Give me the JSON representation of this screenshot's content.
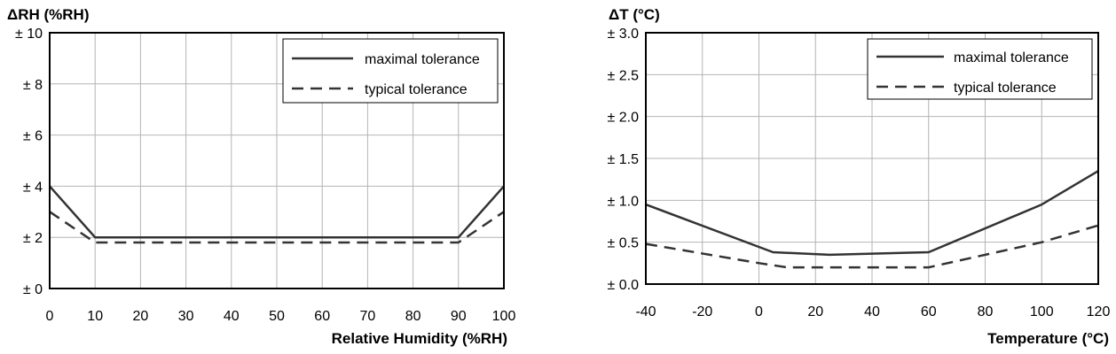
{
  "chart_data": [
    {
      "type": "line",
      "ylabel": "ΔRH (%RH)",
      "xlabel": "Relative Humidity (%RH)",
      "xlim": [
        0,
        100
      ],
      "ylim": [
        0,
        10
      ],
      "x_ticks": [
        0,
        10,
        20,
        30,
        40,
        50,
        60,
        70,
        80,
        90,
        100
      ],
      "x_tick_labels": [
        "0",
        "10",
        "20",
        "30",
        "40",
        "50",
        "60",
        "70",
        "80",
        "90",
        "100"
      ],
      "y_ticks": [
        0,
        2,
        4,
        6,
        8,
        10
      ],
      "y_tick_labels": [
        "± 0",
        "± 2",
        "± 4",
        "± 6",
        "± 8",
        "± 10"
      ],
      "grid": true,
      "legend_position": "top-right",
      "series": [
        {
          "name": "maximal tolerance",
          "style": "solid",
          "color": "#333333",
          "x": [
            0,
            10,
            90,
            100
          ],
          "y": [
            4,
            2,
            2,
            4
          ]
        },
        {
          "name": "typical tolerance",
          "style": "dashed",
          "color": "#333333",
          "x": [
            0,
            10,
            90,
            100
          ],
          "y": [
            3,
            1.8,
            1.8,
            3
          ]
        }
      ]
    },
    {
      "type": "line",
      "ylabel": "ΔT (°C)",
      "xlabel": "Temperature (°C)",
      "xlim": [
        -40,
        120
      ],
      "ylim": [
        0,
        3
      ],
      "x_ticks": [
        -40,
        -20,
        0,
        20,
        40,
        60,
        80,
        100,
        120
      ],
      "x_tick_labels": [
        "-40",
        "-20",
        "0",
        "20",
        "40",
        "60",
        "80",
        "100",
        "120"
      ],
      "y_ticks": [
        0,
        0.5,
        1,
        1.5,
        2,
        2.5,
        3
      ],
      "y_tick_labels": [
        "± 0.0",
        "± 0.5",
        "± 1.0",
        "± 1.5",
        "± 2.0",
        "± 2.5",
        "± 3.0"
      ],
      "grid": true,
      "legend_position": "top-right",
      "series": [
        {
          "name": "maximal tolerance",
          "style": "solid",
          "color": "#333333",
          "x": [
            -40,
            5,
            25,
            60,
            100,
            120
          ],
          "y": [
            0.95,
            0.38,
            0.35,
            0.38,
            0.95,
            1.35
          ]
        },
        {
          "name": "typical tolerance",
          "style": "dashed",
          "color": "#333333",
          "x": [
            -40,
            0,
            10,
            60,
            100,
            120
          ],
          "y": [
            0.48,
            0.25,
            0.2,
            0.2,
            0.5,
            0.7
          ]
        }
      ]
    }
  ]
}
